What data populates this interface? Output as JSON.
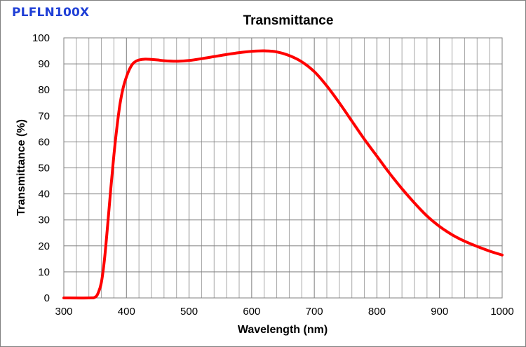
{
  "product_label": "PLFLN100X",
  "chart_data": {
    "type": "line",
    "title": "Transmittance",
    "xlabel": "Wavelength (nm)",
    "ylabel": "Transmittance (%)",
    "xlim": [
      300,
      1000
    ],
    "ylim": [
      0,
      100
    ],
    "x_major_ticks": [
      300,
      400,
      500,
      600,
      700,
      800,
      900,
      1000
    ],
    "x_tick_labels": [
      "300",
      "400",
      "500",
      "600",
      "700",
      "800",
      "900",
      "1000"
    ],
    "x_minor_step": 20,
    "y_ticks": [
      0,
      10,
      20,
      30,
      40,
      50,
      60,
      70,
      80,
      90,
      100
    ],
    "y_tick_labels": [
      "0",
      "10",
      "20",
      "30",
      "40",
      "50",
      "60",
      "70",
      "80",
      "90",
      "100"
    ],
    "grid": true,
    "line_color": "#ff0000",
    "series": [
      {
        "name": "Transmittance",
        "x": [
          300,
          340,
          350,
          355,
          360,
          365,
          370,
          375,
          380,
          385,
          390,
          395,
          400,
          405,
          410,
          415,
          420,
          430,
          440,
          450,
          460,
          480,
          500,
          520,
          540,
          560,
          580,
          600,
          620,
          640,
          660,
          680,
          700,
          720,
          740,
          760,
          780,
          800,
          820,
          840,
          860,
          880,
          900,
          920,
          940,
          960,
          980,
          1000
        ],
        "y": [
          0,
          0,
          0.3,
          2,
          6,
          15,
          28,
          42,
          55,
          66,
          75,
          81,
          85,
          88,
          90,
          91,
          91.5,
          91.8,
          91.7,
          91.5,
          91.2,
          91.0,
          91.3,
          92.0,
          92.8,
          93.6,
          94.3,
          94.8,
          95.0,
          94.6,
          93.2,
          90.8,
          87.0,
          81.5,
          75.0,
          68.0,
          61.0,
          54.5,
          48.0,
          42.0,
          36.5,
          31.5,
          27.5,
          24.3,
          21.8,
          19.8,
          18.0,
          16.5
        ]
      }
    ]
  }
}
